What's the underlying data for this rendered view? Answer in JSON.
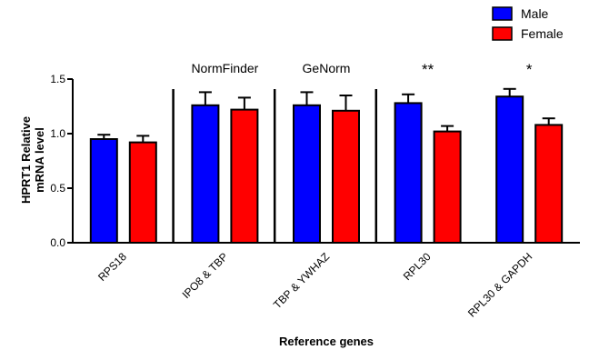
{
  "chart_data": {
    "type": "bar",
    "xlabel": "Reference genes",
    "ylabel_lines": [
      "HPRT1 Relative",
      "mRNA level"
    ],
    "ylim": [
      0,
      1.5
    ],
    "yticks": [
      "0.0",
      "0.5",
      "1.0",
      "1.5"
    ],
    "grid": false,
    "legend_position": "top-right",
    "categories": [
      "RPS18",
      "IPO8 & TBP",
      "TBP & YWHAZ",
      "RPL30",
      "RPL30 & GAPDH"
    ],
    "series": [
      {
        "name": "Male",
        "color": "#0000ff",
        "values": [
          0.95,
          1.26,
          1.26,
          1.28,
          1.34
        ],
        "errors": [
          0.04,
          0.12,
          0.12,
          0.08,
          0.07
        ]
      },
      {
        "name": "Female",
        "color": "#ff0000",
        "values": [
          0.92,
          1.22,
          1.21,
          1.02,
          1.08
        ],
        "errors": [
          0.06,
          0.11,
          0.14,
          0.05,
          0.06
        ]
      }
    ],
    "annotations": [
      {
        "text": "NormFinder",
        "category_index": 1
      },
      {
        "text": "GeNorm",
        "category_index": 2
      }
    ],
    "significance": [
      {
        "text": "",
        "category_index": 0
      },
      {
        "text": "",
        "category_index": 1
      },
      {
        "text": "",
        "category_index": 2
      },
      {
        "text": "**",
        "category_index": 3
      },
      {
        "text": "*",
        "category_index": 4
      }
    ],
    "separators_after_category": [
      0,
      1,
      2
    ]
  }
}
